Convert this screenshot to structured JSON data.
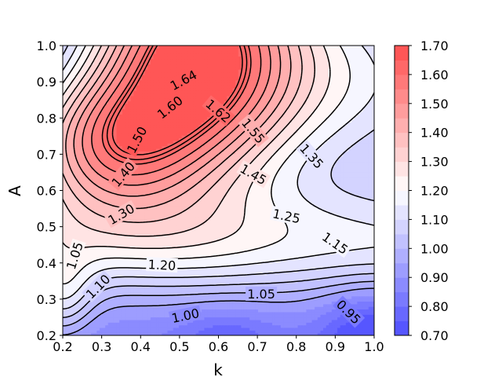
{
  "chart_data": {
    "type": "contour",
    "xlabel": "k",
    "ylabel": "A",
    "xlim": [
      0.2,
      1.0
    ],
    "ylim": [
      0.2,
      1.0
    ],
    "x_ticks": [
      "0.2",
      "0.3",
      "0.4",
      "0.5",
      "0.6",
      "0.7",
      "0.8",
      "0.9",
      "1.0"
    ],
    "y_ticks": [
      "0.2",
      "0.3",
      "0.4",
      "0.5",
      "0.6",
      "0.7",
      "0.8",
      "0.9",
      "1.0"
    ],
    "colormap": "bwr",
    "color_low": "#4d4dff",
    "color_mid": "#ffffff",
    "color_high": "#ff4d4d",
    "colorbar": {
      "range": [
        0.7,
        1.7
      ],
      "levels": [
        0.7,
        0.75,
        0.8,
        0.85,
        0.9,
        0.95,
        1.0,
        1.05,
        1.1,
        1.15,
        1.2,
        1.25,
        1.3,
        1.35,
        1.4,
        1.45,
        1.5,
        1.55,
        1.6,
        1.65,
        1.7
      ],
      "tick_labels": [
        "0.70",
        "0.80",
        "0.90",
        "1.00",
        "1.10",
        "1.20",
        "1.30",
        "1.40",
        "1.50",
        "1.60",
        "1.70"
      ]
    },
    "contour_levels": [
      0.95,
      1.0,
      1.05,
      1.1,
      1.15,
      1.2,
      1.25,
      1.3,
      1.35,
      1.4,
      1.45,
      1.5,
      1.55,
      1.6,
      1.62,
      1.64
    ],
    "contour_labels": [
      {
        "text": "1.64",
        "x": 0.51,
        "y": 0.905,
        "angle": 28
      },
      {
        "text": "1.62",
        "x": 0.6,
        "y": 0.82,
        "angle": -40
      },
      {
        "text": "1.60",
        "x": 0.475,
        "y": 0.83,
        "angle": 38
      },
      {
        "text": "1.55",
        "x": 0.69,
        "y": 0.765,
        "angle": -50
      },
      {
        "text": "1.50",
        "x": 0.39,
        "y": 0.74,
        "angle": 62
      },
      {
        "text": "1.45",
        "x": 0.69,
        "y": 0.645,
        "angle": -30
      },
      {
        "text": "1.40",
        "x": 0.355,
        "y": 0.645,
        "angle": 50
      },
      {
        "text": "1.35",
        "x": 0.84,
        "y": 0.695,
        "angle": -48
      },
      {
        "text": "1.30",
        "x": 0.35,
        "y": 0.535,
        "angle": 30
      },
      {
        "text": "1.25",
        "x": 0.775,
        "y": 0.53,
        "angle": -12
      },
      {
        "text": "1.20",
        "x": 0.455,
        "y": 0.395,
        "angle": -3
      },
      {
        "text": "1.15",
        "x": 0.9,
        "y": 0.455,
        "angle": -35
      },
      {
        "text": "1.10",
        "x": 0.29,
        "y": 0.335,
        "angle": 45
      },
      {
        "text": "1.05",
        "x": 0.23,
        "y": 0.42,
        "angle": 72
      },
      {
        "text": "1.05",
        "x": 0.71,
        "y": 0.315,
        "angle": 0
      },
      {
        "text": "1.00",
        "x": 0.515,
        "y": 0.255,
        "angle": 12
      },
      {
        "text": "0.95",
        "x": 0.935,
        "y": 0.265,
        "angle": -45
      }
    ]
  }
}
